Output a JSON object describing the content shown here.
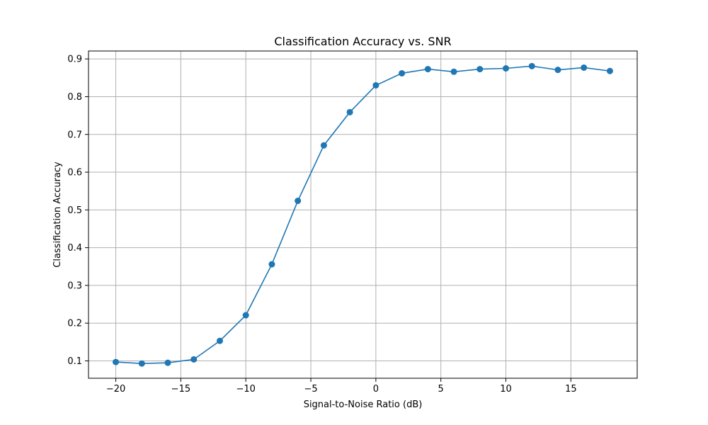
{
  "chart_data": {
    "type": "line",
    "title": "Classification Accuracy vs. SNR",
    "xlabel": "Signal-to-Noise Ratio (dB)",
    "ylabel": "Classification Accuracy",
    "xlim": [
      -22.1,
      20.1
    ],
    "ylim": [
      0.054,
      0.921
    ],
    "xticks": [
      -20,
      -15,
      -10,
      -5,
      0,
      5,
      10,
      15
    ],
    "xtick_labels": [
      "−20",
      "−15",
      "−10",
      "−5",
      "0",
      "5",
      "10",
      "15"
    ],
    "yticks": [
      0.1,
      0.2,
      0.3,
      0.4,
      0.5,
      0.6,
      0.7,
      0.8,
      0.9
    ],
    "ytick_labels": [
      "0.1",
      "0.2",
      "0.3",
      "0.4",
      "0.5",
      "0.6",
      "0.7",
      "0.8",
      "0.9"
    ],
    "grid": true,
    "color": "#1f77b4",
    "marker": "circle",
    "x": [
      -20,
      -18,
      -16,
      -14,
      -12,
      -10,
      -8,
      -6,
      -4,
      -2,
      0,
      2,
      4,
      6,
      8,
      10,
      12,
      14,
      16,
      18
    ],
    "y": [
      0.097,
      0.093,
      0.095,
      0.104,
      0.153,
      0.221,
      0.356,
      0.524,
      0.671,
      0.759,
      0.83,
      0.862,
      0.873,
      0.866,
      0.873,
      0.875,
      0.881,
      0.871,
      0.877,
      0.868
    ]
  }
}
